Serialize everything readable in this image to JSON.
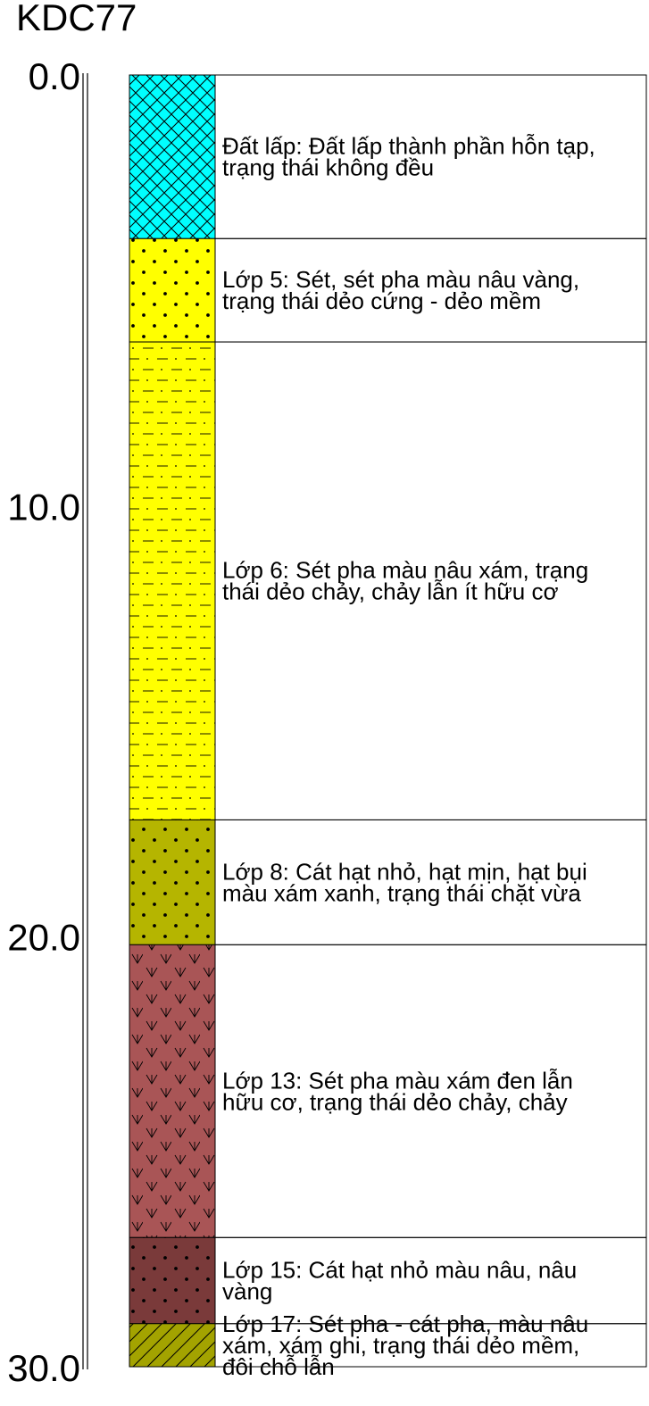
{
  "borehole": {
    "id": "KDC77",
    "depth_axis": {
      "min": 0,
      "max": 30,
      "ticks": [
        "0.0",
        "10.0",
        "20.0",
        "30.0"
      ]
    },
    "layers": [
      {
        "top": 0,
        "bottom": 3.8,
        "pattern": "crosshatch",
        "color": "#00ffff",
        "lines": [
          "Đất lấp: Đất lấp thành phần hỗn tạp,",
          "trạng thái không đều"
        ]
      },
      {
        "top": 3.8,
        "bottom": 6.2,
        "pattern": "dots",
        "color": "#ffff00",
        "lines": [
          "Lớp 5: Sét, sét pha màu nâu vàng,",
          "trạng thái dẻo cứng - dẻo mềm"
        ]
      },
      {
        "top": 6.2,
        "bottom": 17.3,
        "pattern": "dash-dot",
        "color": "#ffff00",
        "lines": [
          "Lớp 6: Sét pha màu nâu xám, trạng",
          "thái dẻo chảy, chảy lẫn ít hữu cơ"
        ]
      },
      {
        "top": 17.3,
        "bottom": 20.2,
        "pattern": "dots",
        "color": "#b5b500",
        "lines": [
          "Lớp 8: Cát hạt nhỏ, hạt mịn, hạt bụi",
          "màu xám xanh, trạng thái chặt vừa"
        ]
      },
      {
        "top": 20.2,
        "bottom": 27.0,
        "pattern": "organic",
        "color": "#a95556",
        "lines": [
          "Lớp 13: Sét pha màu xám đen lẫn",
          "hữu cơ, trạng thái dẻo chảy, chảy"
        ]
      },
      {
        "top": 27.0,
        "bottom": 29.0,
        "pattern": "dots",
        "color": "#7a3a3a",
        "lines": [
          "Lớp 15: Cát hạt nhỏ màu nâu, nâu",
          "vàng"
        ]
      },
      {
        "top": 29.0,
        "bottom": 30.0,
        "pattern": "hatch",
        "color": "#a3a300",
        "lines": [
          "Lớp 17: Sét pha - cát pha, màu nâu",
          "xám, xám ghi, trạng thái dẻo mềm,",
          "đôi chỗ lẫn"
        ]
      }
    ]
  }
}
